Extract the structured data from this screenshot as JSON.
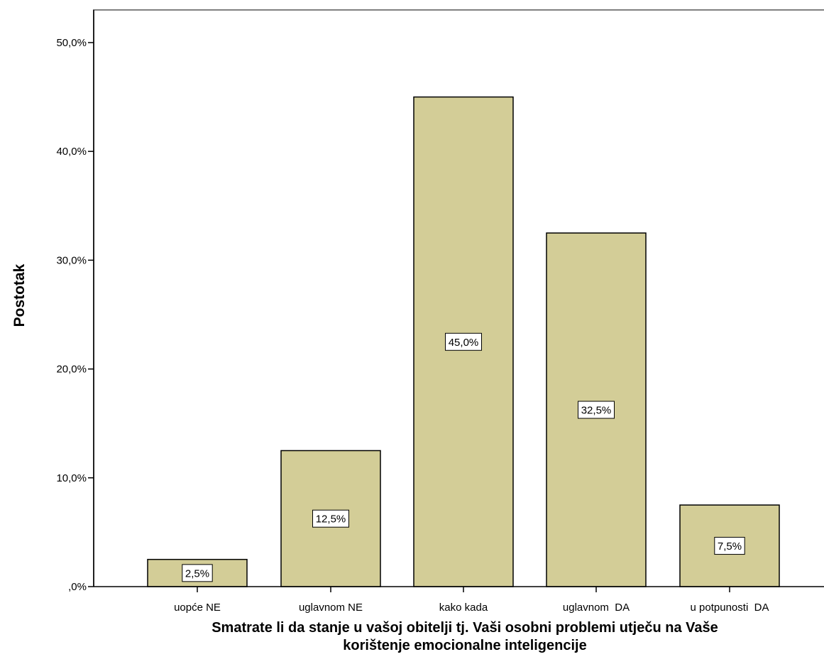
{
  "chart_data": {
    "type": "bar",
    "title": "",
    "xlabel_lines": [
      "Smatrate li da stanje u vašoj obitelji tj. Vaši osobni problemi utječu na Vaše",
      "korištenje emocionalne inteligencije"
    ],
    "ylabel": "Postotak",
    "categories": [
      "uopće NE",
      "uglavnom NE",
      "kako kada",
      "uglavnom  DA",
      "u potpunosti  DA"
    ],
    "values": [
      2.5,
      12.5,
      45.0,
      32.5,
      7.5
    ],
    "data_labels": [
      "2,5%",
      "12,5%",
      "45,0%",
      "32,5%",
      "7,5%"
    ],
    "ylim": [
      0,
      53
    ],
    "yticks": [
      0,
      10,
      20,
      30,
      40,
      50
    ],
    "ytick_labels": [
      ",0%",
      "10,0%",
      "20,0%",
      "30,0%",
      "40,0%",
      "50,0%"
    ],
    "grid": false,
    "legend": "none",
    "colors": {
      "bar_fill": "#D3CD97",
      "bar_stroke": "#000000",
      "axis": "#000000",
      "frame": "#808080",
      "label_box_fill": "#FFFFFF"
    }
  }
}
